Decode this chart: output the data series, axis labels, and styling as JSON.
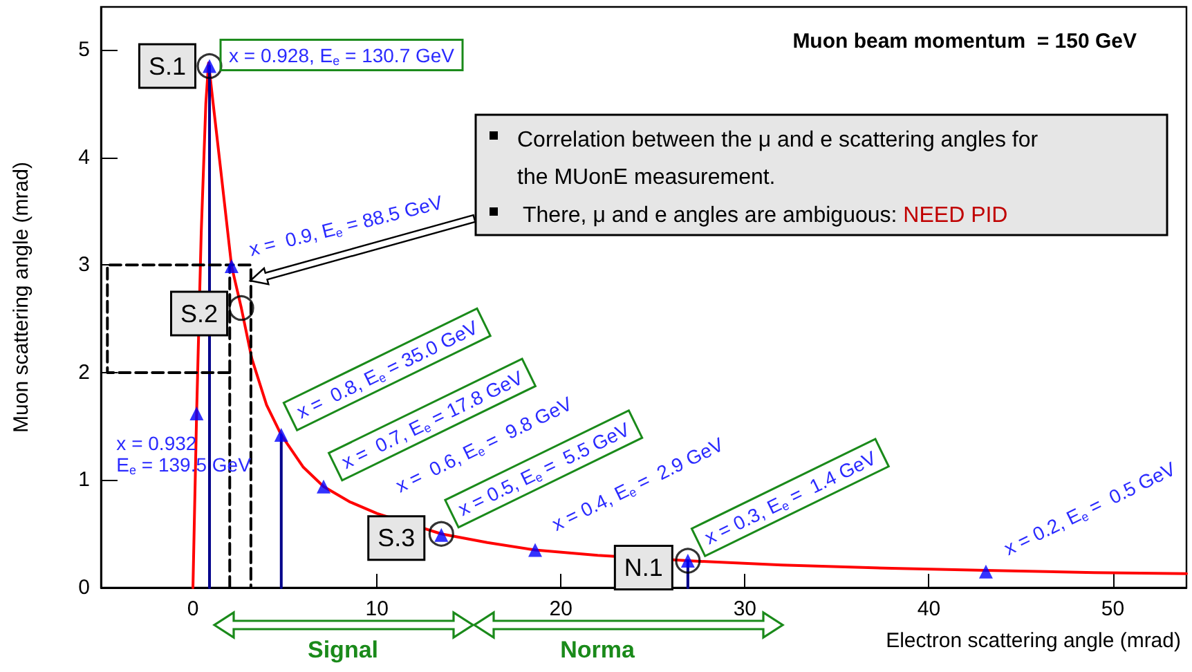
{
  "chart_data": {
    "type": "line",
    "xlabel": "Electron scattering angle (mrad)",
    "ylabel": "Muon scattering angle (mrad)",
    "xlim": [
      -5,
      54
    ],
    "xticks": [
      0,
      10,
      20,
      30,
      40,
      50
    ],
    "ylim": [
      0,
      5.4
    ],
    "yticks": [
      0,
      1,
      2,
      3,
      4,
      5
    ],
    "grid": false,
    "series": [
      {
        "color": "#ff0000",
        "marker": "none",
        "x": [
          0,
          0.2,
          0.45,
          0.7,
          0.85,
          1.1,
          1.5,
          2.1,
          2.63,
          3.2,
          4.0,
          4.8,
          6.0,
          7.1,
          8.5,
          10,
          12,
          13.5,
          16,
          18.6,
          22,
          26.9,
          32,
          38,
          43.1,
          49,
          54
        ],
        "values": [
          0,
          1.62,
          3.3,
          4.5,
          4.88,
          4.5,
          3.9,
          2.99,
          2.6,
          2.13,
          1.7,
          1.42,
          1.12,
          0.94,
          0.8,
          0.69,
          null,
          0.5,
          0.42,
          0.35,
          0.3,
          0.25,
          0.21,
          0.18,
          0.16,
          0.14,
          0.13
        ]
      },
      {
        "color": "#00008b",
        "marker": "none",
        "x": [
          0.9,
          0.9
        ],
        "values": [
          4.85,
          0
        ]
      },
      {
        "color": "#00008b",
        "marker": "none",
        "x": [
          4.8,
          4.8
        ],
        "values": [
          1.42,
          0
        ]
      },
      {
        "color": "#00008b",
        "marker": "none",
        "x": [
          26.9,
          26.9
        ],
        "values": [
          0.25,
          0
        ]
      },
      {
        "color": "#000000",
        "marker": "none",
        "line_style": "dashed",
        "x": [
          2.0,
          -4.65,
          -4.65,
          2.0
        ],
        "values": [
          2,
          2,
          3,
          3
        ]
      },
      {
        "color": "#000000",
        "marker": "none",
        "line_style": "dashed",
        "x": [
          2.0,
          2.0,
          3.15,
          3.15
        ],
        "values": [
          0,
          3,
          3,
          0
        ]
      },
      {
        "type": "scatter",
        "color": "#0000ff",
        "marker": "triangle",
        "x": [
          0.2,
          0.9,
          2.1,
          4.8,
          7.1,
          13.5,
          18.6,
          26.9,
          43.1
        ],
        "values": [
          1.62,
          4.85,
          2.99,
          1.42,
          0.94,
          0.49,
          0.35,
          0.25,
          0.15
        ]
      },
      {
        "type": "scatter",
        "color": "#000000",
        "marker": "circle",
        "x": [
          0.9,
          2.63,
          13.5,
          26.9
        ],
        "values": [
          4.85,
          2.6,
          0.5,
          0.25
        ]
      }
    ],
    "annotations": [
      "Muon beam momentum  = 150 GeV",
      "Correlation between the μ and e scattering angles for the MUonE measurement.",
      "There, μ and e angles are ambiguous: ",
      "NEED PID",
      {
        "text": "x = 0.928, E$_{e}$ = 130.7 GeV",
        "x": 0.9,
        "y": 4.85
      },
      {
        "text": "x = 0.932\nE$_{e}$ = 139.5 GeV",
        "x": 0.2,
        "y": 1.62
      },
      {
        "text": "x =  0.9, E$_{e}$ = 88.5 GeV",
        "x": 2.1,
        "y": 2.99
      },
      {
        "text": "x =  0.8, E$_{e}$ = 35.0 GeV",
        "x": 4.8,
        "y": 1.42
      },
      {
        "text": "x =  0.7, E$_{e}$ = 17.8 GeV",
        "x": 7.1,
        "y": 0.94
      },
      "x =  0.6, E$_{e}$ =  9.8 GeV",
      {
        "text": "x = 0.5, E$_{e}$ =  5.5 GeV",
        "x": 13.5,
        "y": 0.49
      },
      {
        "text": "x = 0.4, E$_{e}$ =  2.9 GeV",
        "x": 18.6,
        "y": 0.35
      },
      {
        "text": "x = 0.3, E$_{e}$ =  1.4 GeV",
        "x": 26.9,
        "y": 0.25
      },
      {
        "text": "x = 0.2, E$_{e}$ =  0.5 GeV",
        "x": 43.1,
        "y": 0.15
      },
      {
        "text": "S.1",
        "x": 0.9,
        "y": 4.85
      },
      {
        "text": "S.2",
        "x": 2.63,
        "y": 2.6
      },
      {
        "text": "S.3",
        "x": 13.5,
        "y": 0.5
      },
      {
        "text": "N.1",
        "x": 26.9,
        "y": 0.25
      },
      "Signal",
      "Norma"
    ]
  }
}
